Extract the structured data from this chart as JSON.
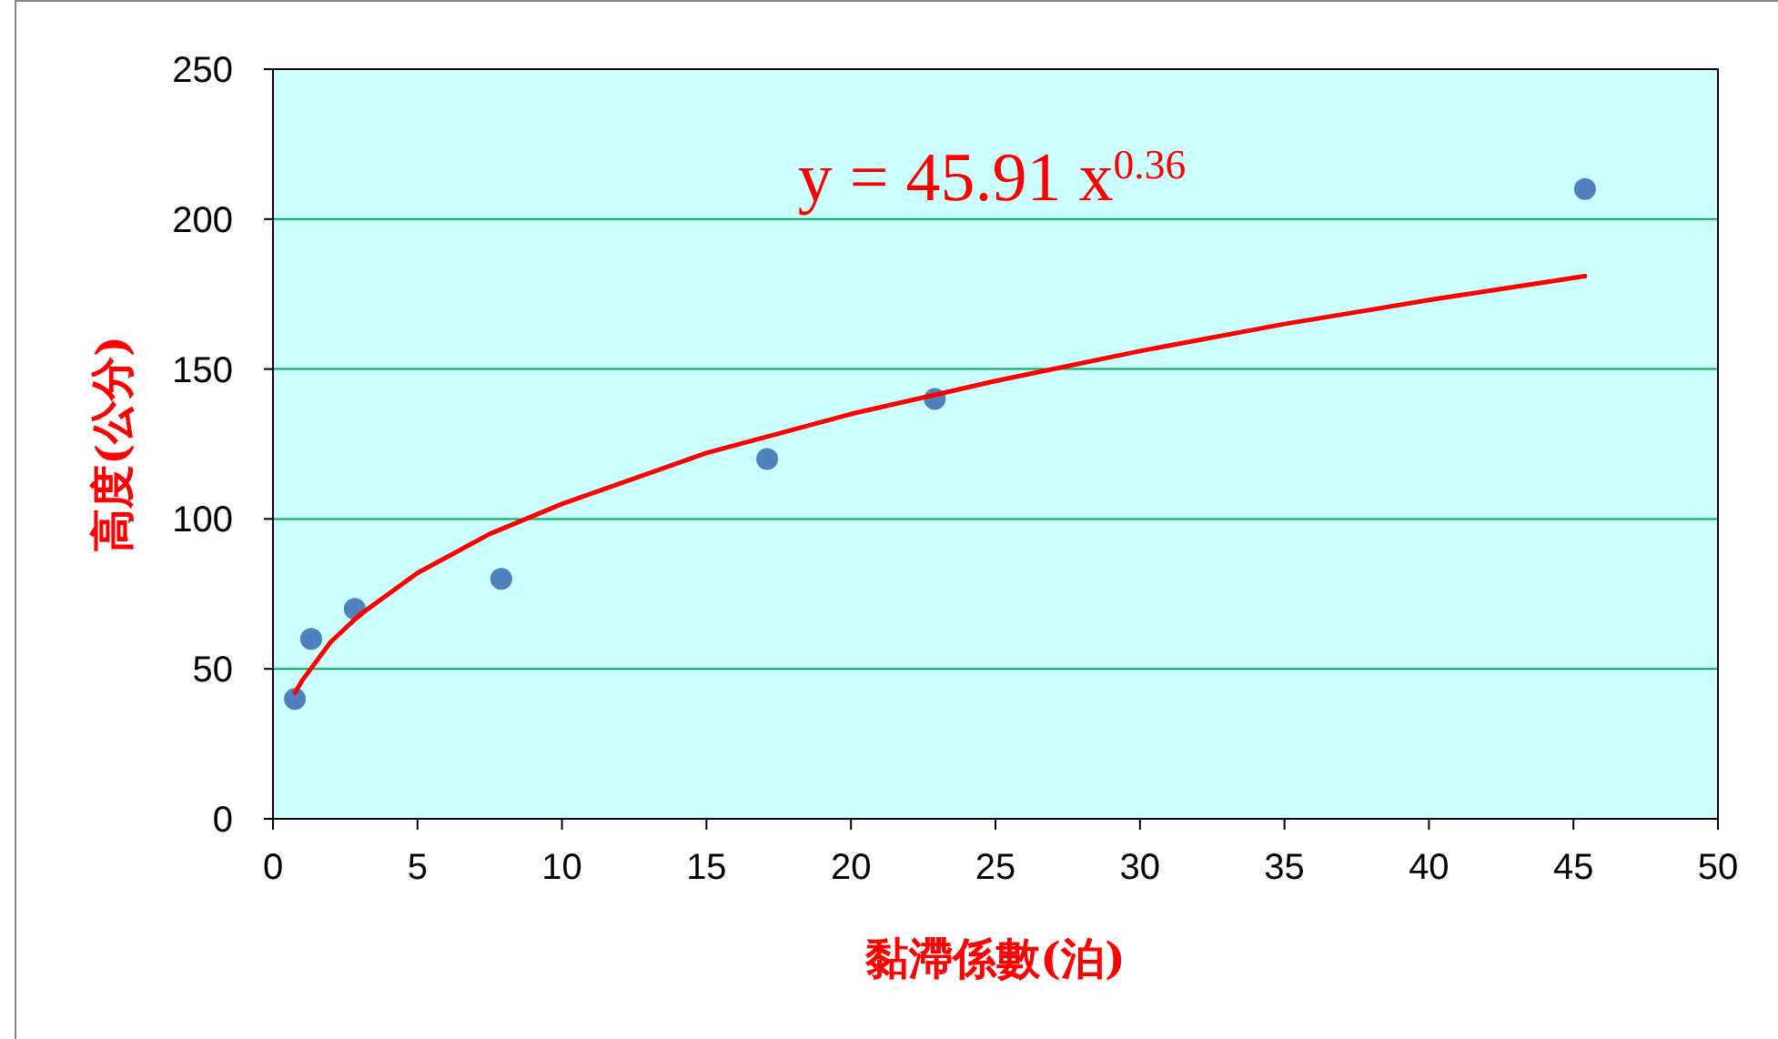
{
  "chart_data": {
    "type": "scatter",
    "xlabel": "黏滯係數(泊)",
    "ylabel": "高度(公分)",
    "xlim": [
      0,
      50
    ],
    "ylim": [
      0,
      250
    ],
    "xticks": [
      0,
      5,
      10,
      15,
      20,
      25,
      30,
      35,
      40,
      45,
      50
    ],
    "yticks": [
      0,
      50,
      100,
      150,
      200,
      250
    ],
    "grid": "y",
    "marker": "circle",
    "series": [
      {
        "color": "#4f81bd",
        "x": [
          0.76,
          1.32,
          2.83,
          7.9,
          17.1,
          22.9,
          45.4
        ],
        "values": [
          40,
          60,
          70,
          80,
          120,
          140,
          210
        ]
      },
      {
        "type": "line",
        "color": "#ff0000",
        "marker": "none",
        "line_style": "solid",
        "x": [
          0.76,
          1,
          2,
          3,
          5,
          7.5,
          10,
          15,
          20,
          25,
          30,
          35,
          40,
          45.4
        ],
        "values": [
          42,
          46,
          59,
          68,
          82,
          95,
          105,
          122,
          135,
          146,
          156,
          165,
          173,
          181
        ]
      }
    ],
    "annotations": [
      "y = 45.91 x$^{0.36}$"
    ]
  }
}
